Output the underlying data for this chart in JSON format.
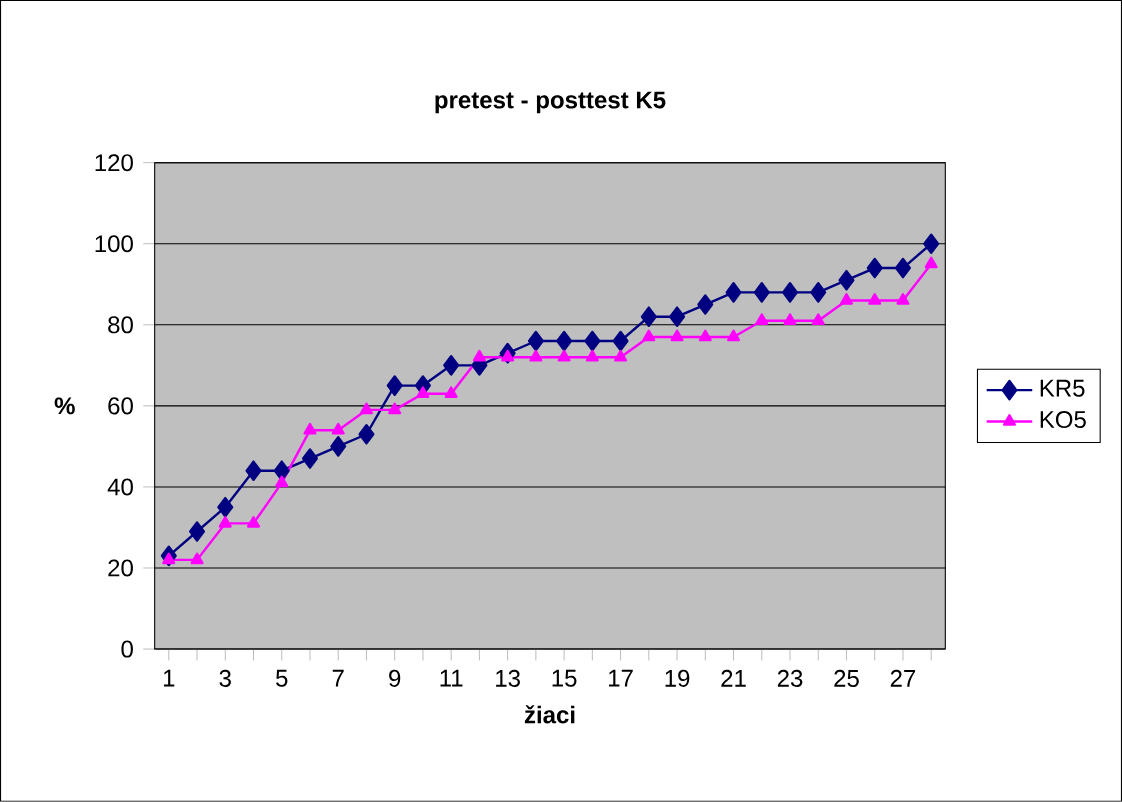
{
  "chart_data": {
    "type": "line",
    "title": "pretest - posttest K5",
    "xlabel": "žiaci",
    "ylabel": "%",
    "categories": [
      "1",
      null,
      "3",
      null,
      "5",
      null,
      "7",
      null,
      "9",
      null,
      "11",
      null,
      "13",
      null,
      "15",
      null,
      "17",
      null,
      "19",
      null,
      "21",
      null,
      "23",
      null,
      "25",
      null,
      "27",
      null
    ],
    "series": [
      {
        "name": "KR5",
        "color": "#000080",
        "marker": "diamond",
        "values": [
          23,
          29,
          35,
          44,
          44,
          47,
          50,
          53,
          65,
          65,
          70,
          70,
          73,
          76,
          76,
          76,
          76,
          82,
          82,
          85,
          88,
          88,
          88,
          88,
          91,
          94,
          94,
          100
        ]
      },
      {
        "name": "KO5",
        "color": "#ff00ff",
        "marker": "triangle",
        "values": [
          22,
          22,
          31,
          31,
          41,
          54,
          54,
          59,
          59,
          63,
          63,
          72,
          72,
          72,
          72,
          72,
          72,
          77,
          77,
          77,
          77,
          81,
          81,
          81,
          86,
          86,
          86,
          95
        ]
      }
    ],
    "ylim": [
      0,
      120
    ],
    "yticks": [
      0,
      20,
      40,
      60,
      80,
      100,
      120
    ],
    "grid": "y",
    "legend": "right"
  }
}
